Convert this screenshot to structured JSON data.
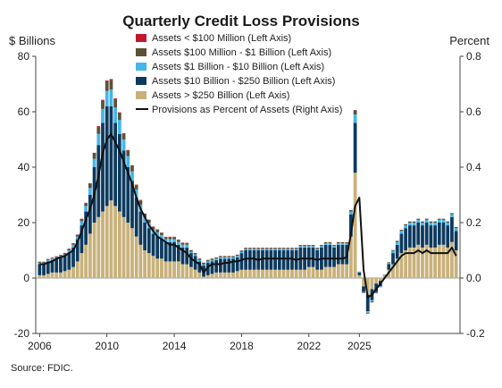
{
  "chart_data": {
    "type": "bar",
    "stacked": true,
    "title": "Quarterly Credit Loss Provisions",
    "ylabel_left": "$ Billions",
    "ylabel_right": "Percent",
    "ylim_left": [
      -20,
      80
    ],
    "ylim_right": [
      -0.2,
      0.8
    ],
    "yticks_left": [
      "-20",
      "0",
      "20",
      "40",
      "60",
      "80"
    ],
    "yticks_right": [
      "-0.2",
      "0.0",
      "0.2",
      "0.4",
      "0.6",
      "0.8"
    ],
    "xticks": [
      "2006",
      "2010",
      "2014",
      "2018",
      "2022",
      "2025"
    ],
    "x_start": "2006 Q1",
    "x_end": "2025 Q1",
    "source": "Source: FDIC.",
    "series": [
      {
        "name": "Assets > $250 Billion (Left Axis)",
        "color": "#c8b17a",
        "values": [
          1,
          1,
          1.5,
          2,
          2,
          2,
          2.5,
          3,
          4,
          6,
          9,
          12,
          16,
          20,
          22,
          24,
          26,
          28,
          26,
          24,
          22,
          20,
          18,
          15,
          12,
          10,
          9,
          8,
          7,
          7,
          6,
          6,
          6,
          6,
          5,
          5,
          4,
          3,
          2,
          0.5,
          1,
          1.5,
          2,
          2,
          2,
          2,
          2,
          2.5,
          3,
          3,
          3,
          3,
          3,
          3,
          3,
          3,
          3,
          3,
          3,
          3,
          3,
          3,
          3,
          3,
          4,
          4,
          3,
          3,
          4,
          4,
          4,
          5,
          5,
          5,
          15,
          38,
          1,
          -3,
          -6,
          -4,
          -2,
          -1,
          1,
          3,
          5,
          7,
          9,
          10,
          11,
          11,
          12,
          11,
          12,
          11,
          11,
          12,
          12,
          11,
          13,
          10
        ]
      },
      {
        "name": "Assets  $10 Billion - $250 Billion (Left Axis)",
        "color": "#0d3a5e",
        "values": [
          4,
          4,
          4.5,
          4.5,
          5,
          5.5,
          5.5,
          6,
          7,
          8,
          10,
          12,
          14,
          20,
          26,
          32,
          36,
          34,
          30,
          28,
          24,
          20,
          17,
          14,
          12,
          10,
          9,
          8,
          8,
          7,
          7,
          7,
          7,
          6,
          6,
          6,
          5,
          5,
          4,
          4,
          4.5,
          4.5,
          4.5,
          5,
          5,
          5,
          5,
          5,
          6,
          7,
          7,
          7,
          7,
          7,
          7,
          7,
          7,
          7,
          7,
          7,
          7,
          7,
          8,
          8,
          7,
          7,
          7,
          8,
          8,
          8,
          7,
          7,
          7,
          7,
          8,
          18,
          1,
          -2,
          -6,
          -4,
          -3,
          -2,
          0,
          2,
          4,
          5,
          7,
          8,
          8,
          8,
          8,
          8,
          8,
          8,
          8,
          8,
          8,
          8,
          9,
          7
        ]
      },
      {
        "name": "Assets  $1 Billion - $10 Billion (Left Axis)",
        "color": "#45b6e8",
        "values": [
          0.5,
          0.5,
          0.5,
          0.5,
          0.5,
          0.5,
          0.5,
          1,
          1,
          1,
          1.5,
          2,
          2.5,
          3,
          4,
          5,
          5.5,
          6,
          5.5,
          5,
          4,
          4,
          3.5,
          3,
          2.5,
          2,
          2,
          1.5,
          1.5,
          1.5,
          1,
          1,
          1,
          1,
          1,
          1,
          0.5,
          0.5,
          0.5,
          0.5,
          0.5,
          0.5,
          0.5,
          0.5,
          0.5,
          0.5,
          0.5,
          0.5,
          0.5,
          0.5,
          0.5,
          0.5,
          0.5,
          0.5,
          0.5,
          0.5,
          0.5,
          0.5,
          0.5,
          0.5,
          0.5,
          0.5,
          0.5,
          0.5,
          0.5,
          0.5,
          0.5,
          0.5,
          0.5,
          0.5,
          0.5,
          0.5,
          0.5,
          0.5,
          1,
          3,
          0.2,
          -0.2,
          -0.5,
          -0.5,
          -0.3,
          -0.2,
          0.2,
          0.5,
          0.8,
          1,
          1,
          1,
          1,
          1,
          1,
          1,
          1,
          1,
          1,
          1,
          1,
          1,
          1,
          1
        ]
      },
      {
        "name": "Assets  $100 Million - $1 Billion (Left Axis)",
        "color": "#5b5137",
        "values": [
          0.3,
          0.3,
          0.3,
          0.3,
          0.3,
          0.3,
          0.5,
          0.5,
          0.5,
          0.6,
          0.8,
          1,
          1.5,
          2,
          2.5,
          3,
          3.5,
          3.5,
          3,
          2.5,
          2,
          2,
          2,
          1.5,
          1.5,
          1.2,
          1,
          1,
          1,
          0.8,
          0.8,
          0.8,
          0.8,
          0.8,
          0.7,
          0.6,
          0.5,
          0.5,
          0.5,
          0.5,
          0.5,
          0.5,
          0.4,
          0.4,
          0.4,
          0.4,
          0.4,
          0.4,
          0.4,
          0.4,
          0.4,
          0.4,
          0.4,
          0.4,
          0.4,
          0.4,
          0.4,
          0.4,
          0.4,
          0.4,
          0.4,
          0.4,
          0.4,
          0.4,
          0.4,
          0.4,
          0.4,
          0.4,
          0.4,
          0.4,
          0.4,
          0.4,
          0.4,
          0.4,
          0.5,
          1.5,
          0.1,
          -0.2,
          -0.3,
          -0.3,
          -0.2,
          -0.1,
          0.1,
          0.2,
          0.3,
          0.4,
          0.4,
          0.4,
          0.4,
          0.4,
          0.4,
          0.4,
          0.4,
          0.4,
          0.4,
          0.4,
          0.4,
          0.4,
          0.4,
          0.4
        ]
      },
      {
        "name": "Assets < $100 Million (Left Axis)",
        "color": "#c0182e",
        "values": [
          0.1,
          0.1,
          0.1,
          0.1,
          0.1,
          0.1,
          0.1,
          0.1,
          0.1,
          0.1,
          0.1,
          0.15,
          0.2,
          0.2,
          0.3,
          0.3,
          0.3,
          0.3,
          0.3,
          0.3,
          0.3,
          0.2,
          0.2,
          0.2,
          0.2,
          0.1,
          0.1,
          0.1,
          0.1,
          0.1,
          0.1,
          0.1,
          0.1,
          0.1,
          0.1,
          0.1,
          0.1,
          0.05,
          0.05,
          0.05,
          0.05,
          0.05,
          0.05,
          0.05,
          0.05,
          0.05,
          0.05,
          0.05,
          0.05,
          0.05,
          0.05,
          0.05,
          0.05,
          0.05,
          0.05,
          0.05,
          0.05,
          0.05,
          0.05,
          0.05,
          0.05,
          0.05,
          0.05,
          0.05,
          0.05,
          0.05,
          0.05,
          0.05,
          0.05,
          0.05,
          0.05,
          0.05,
          0.05,
          0.05,
          0.05,
          0.1,
          0.02,
          -0.02,
          -0.03,
          -0.03,
          -0.02,
          -0.01,
          0.01,
          0.02,
          0.03,
          0.03,
          0.03,
          0.03,
          0.03,
          0.03,
          0.03,
          0.03,
          0.03,
          0.03,
          0.03,
          0.03,
          0.03,
          0.03,
          0.03,
          0.03
        ]
      }
    ],
    "line": {
      "name": "Provisions as Percent of Assets (Right Axis)",
      "color": "#111111",
      "values": [
        0.05,
        0.05,
        0.055,
        0.06,
        0.07,
        0.075,
        0.08,
        0.09,
        0.1,
        0.13,
        0.17,
        0.21,
        0.25,
        0.3,
        0.37,
        0.45,
        0.5,
        0.52,
        0.49,
        0.46,
        0.42,
        0.38,
        0.34,
        0.29,
        0.25,
        0.22,
        0.19,
        0.17,
        0.15,
        0.14,
        0.13,
        0.12,
        0.12,
        0.11,
        0.1,
        0.09,
        0.07,
        0.06,
        0.05,
        0.02,
        0.04,
        0.05,
        0.05,
        0.05,
        0.055,
        0.055,
        0.06,
        0.06,
        0.065,
        0.07,
        0.07,
        0.07,
        0.065,
        0.07,
        0.07,
        0.07,
        0.07,
        0.07,
        0.07,
        0.07,
        0.07,
        0.065,
        0.07,
        0.07,
        0.07,
        0.07,
        0.065,
        0.07,
        0.07,
        0.07,
        0.07,
        0.07,
        0.07,
        0.075,
        0.16,
        0.26,
        0.29,
        0.03,
        -0.07,
        -0.06,
        -0.04,
        -0.02,
        0.0,
        0.02,
        0.04,
        0.06,
        0.08,
        0.09,
        0.09,
        0.09,
        0.1,
        0.09,
        0.1,
        0.09,
        0.09,
        0.09,
        0.09,
        0.09,
        0.11,
        0.08
      ]
    }
  }
}
